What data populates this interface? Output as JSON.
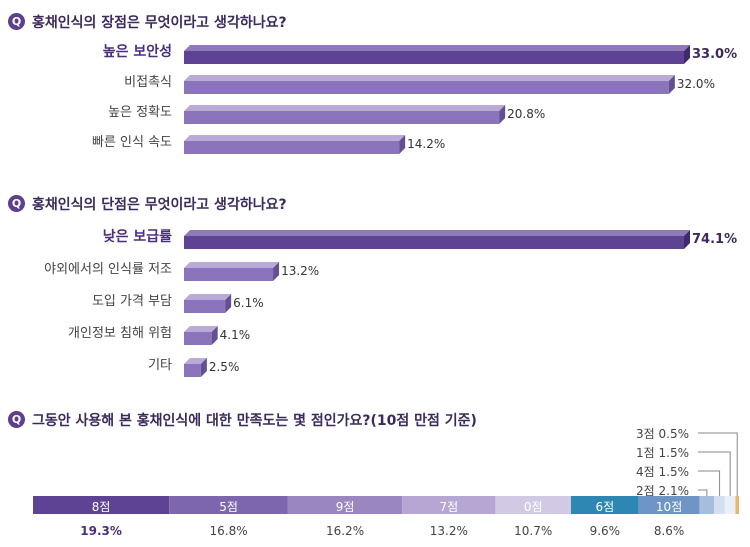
{
  "chart_data": [
    {
      "type": "bar",
      "title": "홍채인식의 장점은 무엇이라고 생각하나요?",
      "categories": [
        "높은 보안성",
        "비접촉식",
        "높은 정확도",
        "빠른 인식 속도"
      ],
      "values": [
        33.0,
        32.0,
        20.8,
        14.2
      ],
      "value_labels": [
        "33.0%",
        "32.0%",
        "20.8%",
        "14.2%"
      ],
      "xlim": [
        0,
        33.0
      ]
    },
    {
      "type": "bar",
      "title": "홍채인식의 단점은 무엇이라고 생각하나요?",
      "categories": [
        "낮은 보급률",
        "야외에서의 인식률 저조",
        "도입 가격 부담",
        "개인정보 침해 위험",
        "기타"
      ],
      "values": [
        74.1,
        13.2,
        6.1,
        4.1,
        2.5
      ],
      "value_labels": [
        "74.1%",
        "13.2%",
        "6.1%",
        "4.1%",
        "2.5%"
      ],
      "xlim": [
        0,
        74.1
      ]
    },
    {
      "type": "bar",
      "stacked": true,
      "title": "그동안 사용해 본 홍채인식에 대한 만족도는 몇 점인가요?(10점 만점 기준)",
      "categories": [
        "8점",
        "5점",
        "9점",
        "7점",
        "0점",
        "6점",
        "10점",
        "2점",
        "4점",
        "1점",
        "3점"
      ],
      "values": [
        19.3,
        16.8,
        16.2,
        13.2,
        10.7,
        9.6,
        8.6,
        2.1,
        1.5,
        1.5,
        0.5
      ],
      "value_labels": [
        "19.3%",
        "16.8%",
        "16.2%",
        "13.2%",
        "10.7%",
        "9.6%",
        "8.6%",
        "2.1%",
        "1.5%",
        "1.5%",
        "0.5%"
      ],
      "colors": [
        "#5e4293",
        "#7d66ad",
        "#9a86c1",
        "#b5a6d3",
        "#d2c9e5",
        "#2e86b3",
        "#6f95c6",
        "#a7bddd",
        "#d5deee",
        "#ebeff7",
        "#e6b86b"
      ]
    }
  ],
  "icons": {
    "question": "Q"
  },
  "palette": {
    "bar_top_front": "#5e4293",
    "bar_top_side": "#3f2a6e",
    "bar_top_top": "#8d7bb9",
    "bar_front": "#8b74bb",
    "bar_side": "#644f93",
    "bar_top": "#b9abd6"
  }
}
